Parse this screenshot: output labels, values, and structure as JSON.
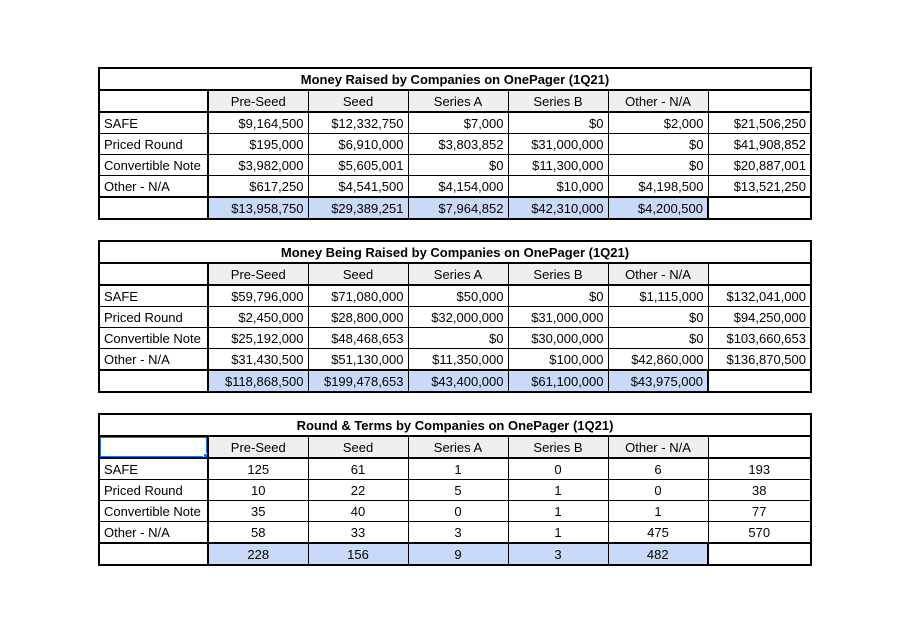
{
  "canvas": {
    "background": "#ffffff"
  },
  "palette": {
    "grid_line": "#000000",
    "header_fill": "#efefef",
    "label_fill": "#efefef",
    "highlight_fill": "#c9daf8",
    "selection_border": "#1a73e8",
    "cell_fill": "#ffffff"
  },
  "tables": [
    {
      "title": "Money Raised by Companies on OnePager (1Q21)",
      "value_align": "right",
      "column_headers": [
        "Pre-Seed",
        "Seed",
        "Series A",
        "Series B",
        "Other - N/A"
      ],
      "rows": [
        {
          "label": "SAFE",
          "values": [
            "$9,164,500",
            "$12,332,750",
            "$7,000",
            "$0",
            "$2,000"
          ],
          "row_total": "$21,506,250"
        },
        {
          "label": "Priced Round",
          "values": [
            "$195,000",
            "$6,910,000",
            "$3,803,852",
            "$31,000,000",
            "$0"
          ],
          "row_total": "$41,908,852"
        },
        {
          "label": "Convertible Note",
          "values": [
            "$3,982,000",
            "$5,605,001",
            "$0",
            "$11,300,000",
            "$0"
          ],
          "row_total": "$20,887,001"
        },
        {
          "label": "Other - N/A",
          "values": [
            "$617,250",
            "$4,541,500",
            "$4,154,000",
            "$10,000",
            "$4,198,500"
          ],
          "row_total": "$13,521,250"
        }
      ],
      "column_totals": [
        "$13,958,750",
        "$29,389,251",
        "$7,964,852",
        "$42,310,000",
        "$4,200,500"
      ],
      "selected_corner_cell": false
    },
    {
      "title": "Money Being Raised by Companies on OnePager (1Q21)",
      "value_align": "right",
      "column_headers": [
        "Pre-Seed",
        "Seed",
        "Series A",
        "Series B",
        "Other - N/A"
      ],
      "rows": [
        {
          "label": "SAFE",
          "values": [
            "$59,796,000",
            "$71,080,000",
            "$50,000",
            "$0",
            "$1,115,000"
          ],
          "row_total": "$132,041,000"
        },
        {
          "label": "Priced Round",
          "values": [
            "$2,450,000",
            "$28,800,000",
            "$32,000,000",
            "$31,000,000",
            "$0"
          ],
          "row_total": "$94,250,000"
        },
        {
          "label": "Convertible Note",
          "values": [
            "$25,192,000",
            "$48,468,653",
            "$0",
            "$30,000,000",
            "$0"
          ],
          "row_total": "$103,660,653"
        },
        {
          "label": "Other - N/A",
          "values": [
            "$31,430,500",
            "$51,130,000",
            "$11,350,000",
            "$100,000",
            "$42,860,000"
          ],
          "row_total": "$136,870,500"
        }
      ],
      "column_totals": [
        "$118,868,500",
        "$199,478,653",
        "$43,400,000",
        "$61,100,000",
        "$43,975,000"
      ],
      "selected_corner_cell": false
    },
    {
      "title": "Round & Terms by Companies on OnePager (1Q21)",
      "value_align": "center",
      "column_headers": [
        "Pre-Seed",
        "Seed",
        "Series A",
        "Series B",
        "Other - N/A"
      ],
      "rows": [
        {
          "label": "SAFE",
          "values": [
            "125",
            "61",
            "1",
            "0",
            "6"
          ],
          "row_total": "193"
        },
        {
          "label": "Priced Round",
          "values": [
            "10",
            "22",
            "5",
            "1",
            "0"
          ],
          "row_total": "38"
        },
        {
          "label": "Convertible Note",
          "values": [
            "35",
            "40",
            "0",
            "1",
            "1"
          ],
          "row_total": "77"
        },
        {
          "label": "Other - N/A",
          "values": [
            "58",
            "33",
            "3",
            "1",
            "475"
          ],
          "row_total": "570"
        }
      ],
      "column_totals": [
        "228",
        "156",
        "9",
        "3",
        "482"
      ],
      "selected_corner_cell": true
    }
  ]
}
